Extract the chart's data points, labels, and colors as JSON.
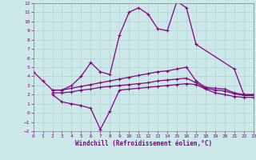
{
  "xlabel": "Windchill (Refroidissement éolien,°C)",
  "bg_color": "#cce8e8",
  "line_color": "#880088",
  "grid_color": "#aacccc",
  "ylim": [
    -2,
    12
  ],
  "xlim": [
    0,
    23
  ],
  "line_color2": "#aa00aa",
  "curve_main_x": [
    0,
    1,
    2,
    3,
    4,
    5,
    6,
    7,
    8,
    9,
    10,
    11,
    12,
    13,
    14,
    15,
    16,
    17,
    21,
    22,
    23
  ],
  "curve_main_y": [
    4.5,
    3.5,
    2.5,
    2.5,
    3.0,
    4.0,
    5.5,
    4.5,
    4.2,
    8.5,
    11.0,
    11.5,
    10.8,
    9.2,
    9.0,
    12.2,
    11.5,
    7.5,
    4.8,
    2.0,
    2.0
  ],
  "curve_upper_x": [
    2,
    3,
    4,
    5,
    6,
    7,
    8,
    9,
    10,
    11,
    12,
    13,
    14,
    15,
    16,
    17,
    18,
    19,
    20,
    21,
    22,
    23
  ],
  "curve_upper_y": [
    2.5,
    2.5,
    2.7,
    2.9,
    3.1,
    3.3,
    3.5,
    3.7,
    3.9,
    4.1,
    4.3,
    4.5,
    4.6,
    4.8,
    5.0,
    3.5,
    2.8,
    2.7,
    2.6,
    2.2,
    2.0,
    2.0
  ],
  "curve_mid_x": [
    2,
    3,
    4,
    5,
    6,
    7,
    8,
    9,
    10,
    11,
    12,
    13,
    14,
    15,
    16,
    17,
    18,
    19,
    20,
    21,
    22,
    23
  ],
  "curve_mid_y": [
    2.2,
    2.2,
    2.3,
    2.5,
    2.6,
    2.8,
    2.9,
    3.0,
    3.1,
    3.2,
    3.3,
    3.5,
    3.6,
    3.7,
    3.8,
    3.3,
    2.7,
    2.5,
    2.4,
    2.1,
    1.9,
    1.9
  ],
  "curve_low_x": [
    2,
    3,
    4,
    5,
    6,
    7,
    8,
    9,
    10,
    11,
    12,
    13,
    14,
    15,
    16,
    17,
    18,
    19,
    20,
    21,
    22,
    23
  ],
  "curve_low_y": [
    2.0,
    1.2,
    1.0,
    0.8,
    0.5,
    -1.8,
    0.2,
    2.5,
    2.6,
    2.7,
    2.8,
    2.9,
    3.0,
    3.1,
    3.2,
    3.1,
    2.6,
    2.2,
    2.0,
    1.8,
    1.7,
    1.7
  ]
}
